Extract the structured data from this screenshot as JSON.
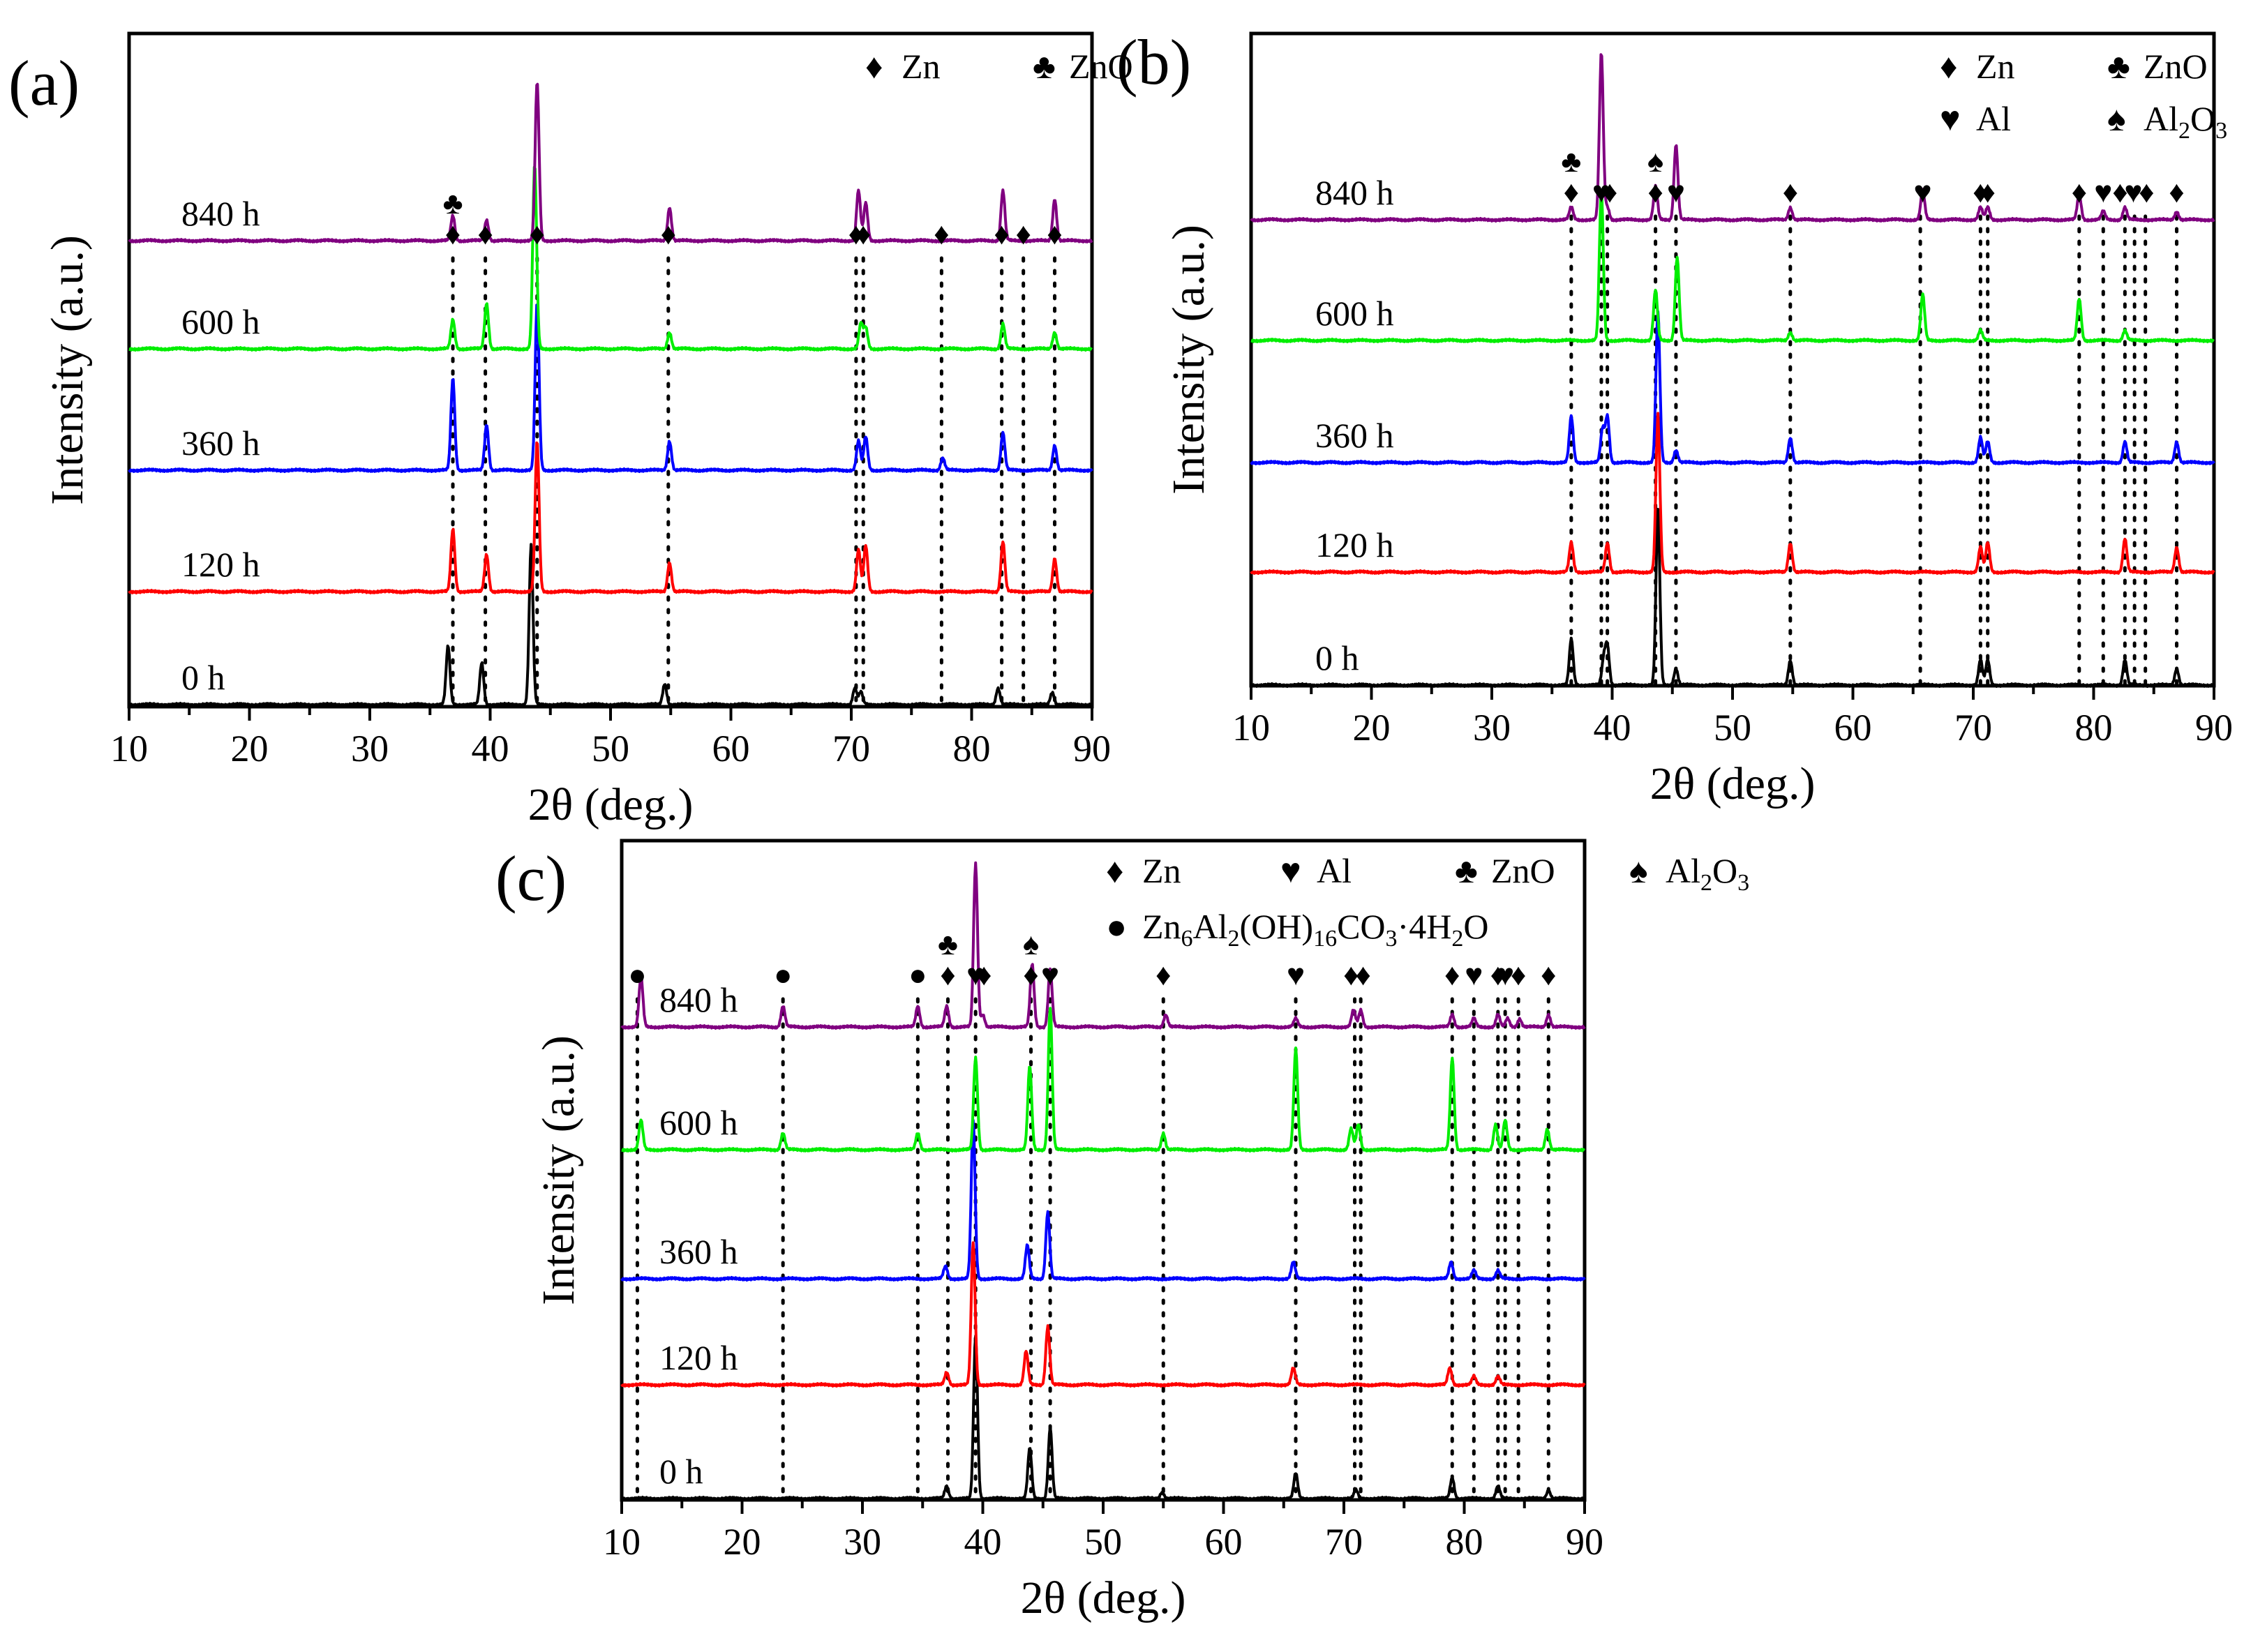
{
  "chart_data": [
    {
      "type": "line",
      "panel": "(a)",
      "xlabel": "2θ (deg.)",
      "ylabel": "Intensity (a.u.)",
      "xlim": [
        10,
        90
      ],
      "xticks": [
        "10",
        "20",
        "30",
        "40",
        "50",
        "60",
        "70",
        "80",
        "90"
      ],
      "legend": [
        {
          "symbol": "♦",
          "label": "Zn"
        },
        {
          "symbol": "♣",
          "label": "ZnO"
        }
      ],
      "series": [
        {
          "name": "0 h",
          "color": "#000000",
          "peaks": [
            [
              36.5,
              0.7
            ],
            [
              39.3,
              0.5
            ],
            [
              43.4,
              1.9
            ],
            [
              54.5,
              0.25
            ],
            [
              70.3,
              0.2
            ],
            [
              70.8,
              0.15
            ],
            [
              82.2,
              0.2
            ],
            [
              86.7,
              0.15
            ]
          ]
        },
        {
          "name": "120 h",
          "color": "#ff0000",
          "peaks": [
            [
              36.9,
              0.75
            ],
            [
              39.7,
              0.45
            ],
            [
              43.9,
              1.8
            ],
            [
              54.9,
              0.35
            ],
            [
              70.6,
              0.5
            ],
            [
              71.2,
              0.55
            ],
            [
              82.6,
              0.6
            ],
            [
              86.9,
              0.4
            ]
          ]
        },
        {
          "name": "360 h",
          "color": "#0000ff",
          "peaks": [
            [
              36.9,
              1.1
            ],
            [
              39.7,
              0.55
            ],
            [
              43.9,
              2.0
            ],
            [
              54.9,
              0.35
            ],
            [
              70.6,
              0.35
            ],
            [
              71.2,
              0.4
            ],
            [
              77.6,
              0.15
            ],
            [
              82.6,
              0.45
            ],
            [
              86.9,
              0.3
            ]
          ]
        },
        {
          "name": "600 h",
          "color": "#00ee00",
          "peaks": [
            [
              36.9,
              0.35
            ],
            [
              39.7,
              0.55
            ],
            [
              43.7,
              2.2
            ],
            [
              54.9,
              0.2
            ],
            [
              70.8,
              0.3
            ],
            [
              71.2,
              0.25
            ],
            [
              82.6,
              0.3
            ],
            [
              86.9,
              0.2
            ]
          ]
        },
        {
          "name": "840 h",
          "color": "#800080",
          "peaks": [
            [
              36.9,
              0.3
            ],
            [
              39.7,
              0.25
            ],
            [
              43.9,
              1.9
            ],
            [
              54.9,
              0.4
            ],
            [
              70.6,
              0.6
            ],
            [
              71.2,
              0.45
            ],
            [
              82.6,
              0.6
            ],
            [
              86.9,
              0.5
            ]
          ]
        }
      ],
      "dotted_lines_x": [
        36.9,
        39.6,
        43.9,
        54.8,
        70.4,
        71.0,
        77.5,
        82.5,
        84.3,
        86.9
      ],
      "markers": [
        {
          "x": 36.9,
          "symbols": "♣♦"
        },
        {
          "x": 39.6,
          "symbols": "♦"
        },
        {
          "x": 43.9,
          "symbols": "♦"
        },
        {
          "x": 54.8,
          "symbols": "♦"
        },
        {
          "x": 70.4,
          "symbols": "♦"
        },
        {
          "x": 71.0,
          "symbols": "♦"
        },
        {
          "x": 77.5,
          "symbols": "♦"
        },
        {
          "x": 82.5,
          "symbols": "♦"
        },
        {
          "x": 84.3,
          "symbols": "♦"
        },
        {
          "x": 86.9,
          "symbols": "♦"
        }
      ]
    },
    {
      "type": "line",
      "panel": "(b)",
      "xlabel": "2θ (deg.)",
      "ylabel": "Intensity (a.u.)",
      "xlim": [
        10,
        90
      ],
      "xticks": [
        "10",
        "20",
        "30",
        "40",
        "50",
        "60",
        "70",
        "80",
        "90"
      ],
      "legend": [
        {
          "symbol": "♦",
          "label": "Zn"
        },
        {
          "symbol": "♣",
          "label": "ZnO"
        },
        {
          "symbol": "♥",
          "label": "Al"
        },
        {
          "symbol": "♠",
          "label": "Al2O3"
        }
      ],
      "series": [
        {
          "name": "0 h",
          "color": "#000000",
          "peaks": [
            [
              36.6,
              0.55
            ],
            [
              39.3,
              0.3
            ],
            [
              39.6,
              0.45
            ],
            [
              43.8,
              2.1
            ],
            [
              45.3,
              0.2
            ],
            [
              54.8,
              0.3
            ],
            [
              70.6,
              0.3
            ],
            [
              71.2,
              0.3
            ],
            [
              82.6,
              0.3
            ],
            [
              86.9,
              0.2
            ]
          ]
        },
        {
          "name": "120 h",
          "color": "#ff0000",
          "peaks": [
            [
              36.6,
              0.35
            ],
            [
              39.6,
              0.35
            ],
            [
              43.8,
              1.9
            ],
            [
              54.8,
              0.35
            ],
            [
              70.6,
              0.3
            ],
            [
              71.2,
              0.35
            ],
            [
              82.6,
              0.4
            ],
            [
              86.9,
              0.3
            ]
          ]
        },
        {
          "name": "360 h",
          "color": "#0000ff",
          "peaks": [
            [
              36.6,
              0.55
            ],
            [
              39.2,
              0.4
            ],
            [
              39.6,
              0.55
            ],
            [
              43.8,
              1.8
            ],
            [
              45.3,
              0.15
            ],
            [
              54.8,
              0.3
            ],
            [
              70.6,
              0.3
            ],
            [
              71.2,
              0.25
            ],
            [
              82.6,
              0.25
            ],
            [
              86.9,
              0.25
            ]
          ]
        },
        {
          "name": "600 h",
          "color": "#00ee00",
          "peaks": [
            [
              39.1,
              1.8
            ],
            [
              43.6,
              0.6
            ],
            [
              45.4,
              1.0
            ],
            [
              54.8,
              0.1
            ],
            [
              65.8,
              0.55
            ],
            [
              70.6,
              0.12
            ],
            [
              78.8,
              0.5
            ],
            [
              82.6,
              0.12
            ]
          ]
        },
        {
          "name": "840 h",
          "color": "#800080",
          "peaks": [
            [
              36.6,
              0.15
            ],
            [
              39.1,
              2.0
            ],
            [
              39.6,
              0.15
            ],
            [
              43.6,
              0.4
            ],
            [
              45.3,
              0.9
            ],
            [
              54.8,
              0.15
            ],
            [
              65.8,
              0.35
            ],
            [
              70.6,
              0.15
            ],
            [
              71.2,
              0.15
            ],
            [
              78.8,
              0.3
            ],
            [
              80.8,
              0.1
            ],
            [
              82.6,
              0.15
            ],
            [
              86.9,
              0.1
            ]
          ]
        }
      ],
      "dotted_lines_x": [
        36.6,
        39.1,
        39.6,
        43.6,
        45.3,
        54.8,
        65.6,
        70.6,
        71.2,
        78.8,
        80.8,
        82.6,
        83.4,
        84.3,
        86.9
      ],
      "markers": [
        {
          "x": 36.6,
          "symbols": "♣♦"
        },
        {
          "x": 39.1,
          "symbols": "♥"
        },
        {
          "x": 39.8,
          "symbols": "♦"
        },
        {
          "x": 43.6,
          "symbols": "♠♦"
        },
        {
          "x": 45.3,
          "symbols": "♥"
        },
        {
          "x": 54.8,
          "symbols": "♦"
        },
        {
          "x": 65.8,
          "symbols": "♥"
        },
        {
          "x": 70.6,
          "symbols": "♦"
        },
        {
          "x": 71.2,
          "symbols": "♦"
        },
        {
          "x": 78.8,
          "symbols": "♦"
        },
        {
          "x": 80.8,
          "symbols": "♥"
        },
        {
          "x": 82.2,
          "symbols": "♦"
        },
        {
          "x": 83.3,
          "symbols": "♥"
        },
        {
          "x": 84.4,
          "symbols": "♦"
        },
        {
          "x": 86.9,
          "symbols": "♦"
        }
      ]
    },
    {
      "type": "line",
      "panel": "(c)",
      "xlabel": "2θ (deg.)",
      "ylabel": "Intensity (a.u.)",
      "xlim": [
        10,
        90
      ],
      "xticks": [
        "10",
        "20",
        "30",
        "40",
        "50",
        "60",
        "70",
        "80",
        "90"
      ],
      "legend": [
        {
          "symbol": "♦",
          "label": "Zn"
        },
        {
          "symbol": "♥",
          "label": "Al"
        },
        {
          "symbol": "♣",
          "label": "ZnO"
        },
        {
          "symbol": "♠",
          "label": "Al2O3"
        },
        {
          "symbol": "●",
          "label": "Zn6Al2(OH)16CO3·4H2O"
        }
      ],
      "series": [
        {
          "name": "0 h",
          "color": "#000000",
          "peaks": [
            [
              37.0,
              0.15
            ],
            [
              39.4,
              1.95
            ],
            [
              43.9,
              0.6
            ],
            [
              45.6,
              0.85
            ],
            [
              54.9,
              0.08
            ],
            [
              66.0,
              0.3
            ],
            [
              71.0,
              0.1
            ],
            [
              79.0,
              0.25
            ],
            [
              82.8,
              0.15
            ],
            [
              87.0,
              0.1
            ]
          ]
        },
        {
          "name": "120 h",
          "color": "#ff0000",
          "peaks": [
            [
              37.0,
              0.15
            ],
            [
              39.2,
              1.7
            ],
            [
              43.6,
              0.4
            ],
            [
              45.4,
              0.7
            ],
            [
              65.8,
              0.2
            ],
            [
              78.8,
              0.2
            ],
            [
              80.8,
              0.1
            ],
            [
              82.8,
              0.1
            ]
          ]
        },
        {
          "name": "360 h",
          "color": "#0000ff",
          "peaks": [
            [
              36.9,
              0.15
            ],
            [
              39.2,
              1.9
            ],
            [
              43.7,
              0.4
            ],
            [
              45.4,
              0.8
            ],
            [
              65.8,
              0.2
            ],
            [
              78.9,
              0.2
            ],
            [
              80.8,
              0.1
            ],
            [
              82.8,
              0.1
            ]
          ]
        },
        {
          "name": "600 h",
          "color": "#00ee00",
          "peaks": [
            [
              11.6,
              0.35
            ],
            [
              23.4,
              0.2
            ],
            [
              34.6,
              0.2
            ],
            [
              39.4,
              1.1
            ],
            [
              43.9,
              1.0
            ],
            [
              45.6,
              1.7
            ],
            [
              55.0,
              0.2
            ],
            [
              66.0,
              1.2
            ],
            [
              70.6,
              0.25
            ],
            [
              71.2,
              0.3
            ],
            [
              79.0,
              1.1
            ],
            [
              82.6,
              0.3
            ],
            [
              83.4,
              0.35
            ],
            [
              86.9,
              0.25
            ]
          ]
        },
        {
          "name": "840 h",
          "color": "#800080",
          "peaks": [
            [
              11.6,
              0.6
            ],
            [
              23.4,
              0.25
            ],
            [
              34.6,
              0.25
            ],
            [
              37.0,
              0.25
            ],
            [
              39.4,
              1.95
            ],
            [
              40.0,
              0.15
            ],
            [
              44.1,
              0.75
            ],
            [
              45.6,
              0.7
            ],
            [
              55.2,
              0.15
            ],
            [
              66.0,
              0.1
            ],
            [
              70.8,
              0.2
            ],
            [
              71.4,
              0.2
            ],
            [
              79.0,
              0.15
            ],
            [
              80.8,
              0.1
            ],
            [
              82.8,
              0.15
            ],
            [
              83.6,
              0.1
            ],
            [
              84.6,
              0.1
            ],
            [
              87.0,
              0.15
            ]
          ]
        }
      ],
      "dotted_lines_x": [
        11.3,
        23.4,
        34.6,
        37.1,
        39.4,
        44.0,
        45.6,
        55.0,
        66.0,
        70.9,
        71.4,
        79.0,
        80.8,
        82.8,
        83.4,
        84.5,
        87.0
      ],
      "markers": [
        {
          "x": 11.3,
          "symbols": "●"
        },
        {
          "x": 23.4,
          "symbols": "●"
        },
        {
          "x": 34.6,
          "symbols": "●"
        },
        {
          "x": 37.1,
          "symbols": "♣♦"
        },
        {
          "x": 39.4,
          "symbols": "♥"
        },
        {
          "x": 40.1,
          "symbols": "♦"
        },
        {
          "x": 44.0,
          "symbols": "♠♦"
        },
        {
          "x": 45.6,
          "symbols": "♥"
        },
        {
          "x": 55.0,
          "symbols": "♦"
        },
        {
          "x": 66.0,
          "symbols": "♥"
        },
        {
          "x": 70.6,
          "symbols": "♦"
        },
        {
          "x": 71.6,
          "symbols": "♦"
        },
        {
          "x": 79.0,
          "symbols": "♦"
        },
        {
          "x": 80.8,
          "symbols": "♥"
        },
        {
          "x": 82.8,
          "symbols": "♦"
        },
        {
          "x": 83.4,
          "symbols": "♥"
        },
        {
          "x": 84.5,
          "symbols": "♦"
        },
        {
          "x": 87.0,
          "symbols": "♦"
        }
      ]
    }
  ]
}
